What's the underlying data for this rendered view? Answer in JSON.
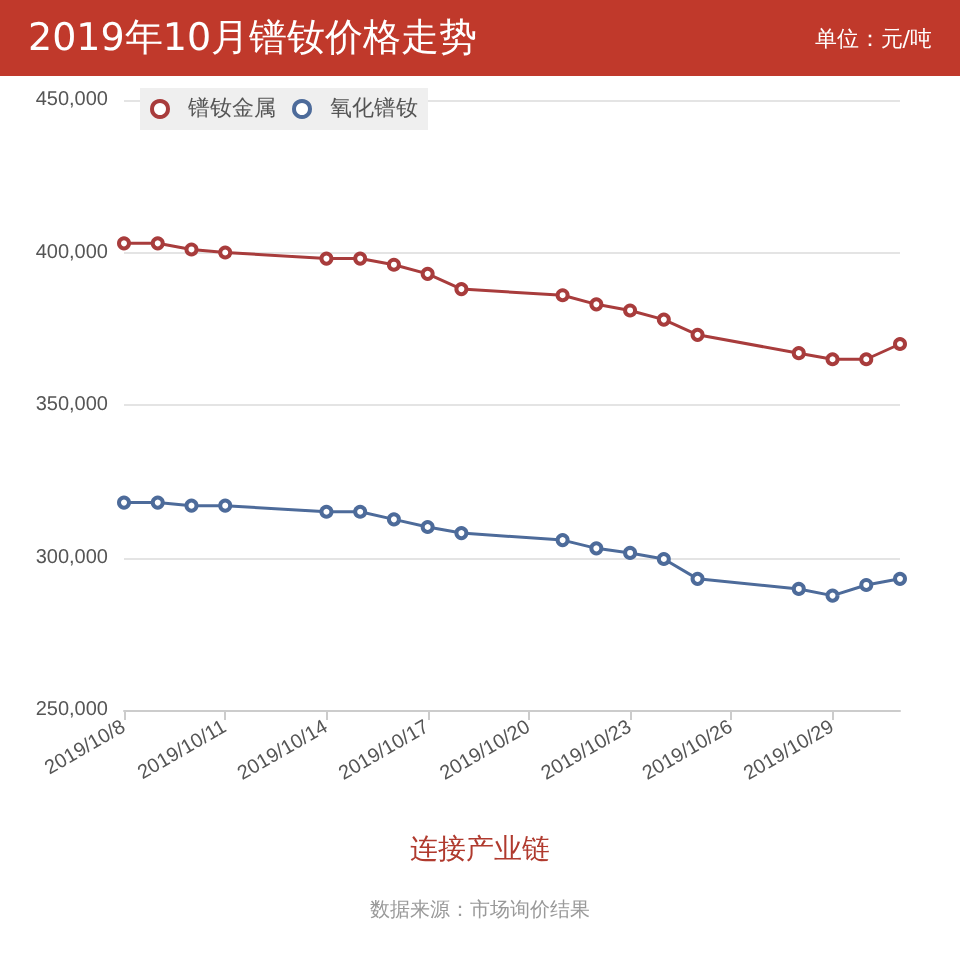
{
  "chart_data": {
    "type": "line",
    "title": "2019年10月镨钕价格走势",
    "ylabel": "单位：元/吨",
    "x": [
      "2019-10-08",
      "2019-10-09",
      "2019-10-10",
      "2019-10-11",
      "2019-10-14",
      "2019-10-15",
      "2019-10-16",
      "2019-10-17",
      "2019-10-18",
      "2019-10-21",
      "2019-10-22",
      "2019-10-23",
      "2019-10-24",
      "2019-10-25",
      "2019-10-28",
      "2019-10-29",
      "2019-10-30",
      "2019-10-31"
    ],
    "series": [
      {
        "name": "镨钕金属",
        "color": "#a83c3c",
        "values": [
          403000,
          403000,
          401000,
          400000,
          398000,
          398000,
          396000,
          393000,
          388000,
          386000,
          383000,
          381000,
          378000,
          373000,
          367000,
          365000,
          365000,
          370000
        ]
      },
      {
        "name": "氧化镨钕",
        "color": "#4d6b9a",
        "values": [
          318000,
          318000,
          317000,
          317000,
          315000,
          315000,
          312500,
          310000,
          308000,
          305700,
          303000,
          301500,
          299500,
          293000,
          289700,
          287500,
          291000,
          293000
        ]
      }
    ],
    "xlim": [
      "2019-10-08",
      "2019-10-31"
    ],
    "xticks": [
      {
        "value": "2019-10-08",
        "label": "2019/10/8"
      },
      {
        "value": "2019-10-11",
        "label": "2019/10/11"
      },
      {
        "value": "2019-10-14",
        "label": "2019/10/14"
      },
      {
        "value": "2019-10-17",
        "label": "2019/10/17"
      },
      {
        "value": "2019-10-20",
        "label": "2019/10/20"
      },
      {
        "value": "2019-10-23",
        "label": "2019/10/23"
      },
      {
        "value": "2019-10-26",
        "label": "2019/10/26"
      },
      {
        "value": "2019-10-29",
        "label": "2019/10/29"
      }
    ],
    "ylim": [
      250000,
      450000
    ],
    "yticks": [
      {
        "value": 250000,
        "label": "250,000"
      },
      {
        "value": 300000,
        "label": "300,000"
      },
      {
        "value": 350000,
        "label": "350,000"
      },
      {
        "value": 400000,
        "label": "400,000"
      },
      {
        "value": 450000,
        "label": "450,000"
      }
    ],
    "grid": "y",
    "legend": "top left",
    "marker": "circle",
    "line_style": "solid",
    "annotations": [
      "连接产业链",
      "数据来源：市场询价结果"
    ]
  }
}
